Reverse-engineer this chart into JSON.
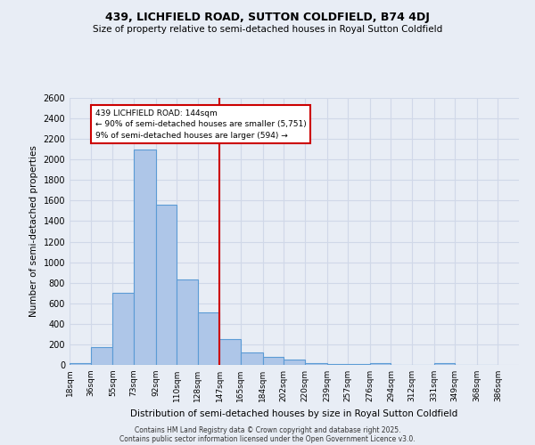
{
  "title1": "439, LICHFIELD ROAD, SUTTON COLDFIELD, B74 4DJ",
  "title2": "Size of property relative to semi-detached houses in Royal Sutton Coldfield",
  "xlabel": "Distribution of semi-detached houses by size in Royal Sutton Coldfield",
  "ylabel": "Number of semi-detached properties",
  "bin_labels": [
    "18sqm",
    "36sqm",
    "55sqm",
    "73sqm",
    "92sqm",
    "110sqm",
    "128sqm",
    "147sqm",
    "165sqm",
    "184sqm",
    "202sqm",
    "220sqm",
    "239sqm",
    "257sqm",
    "276sqm",
    "294sqm",
    "312sqm",
    "331sqm",
    "349sqm",
    "368sqm",
    "386sqm"
  ],
  "bin_edges": [
    18,
    36,
    55,
    73,
    92,
    110,
    128,
    147,
    165,
    184,
    202,
    220,
    239,
    257,
    276,
    294,
    312,
    331,
    349,
    368,
    386
  ],
  "bar_heights": [
    18,
    170,
    700,
    2100,
    1560,
    830,
    510,
    250,
    120,
    75,
    50,
    20,
    10,
    5,
    20,
    0,
    0,
    20,
    0,
    0
  ],
  "bar_color": "#aec6e8",
  "bar_edge_color": "#5b9bd5",
  "grid_color": "#d0d8e8",
  "bg_color": "#e8edf5",
  "vline_x": 147,
  "vline_color": "#cc0000",
  "ylim": [
    0,
    2600
  ],
  "yticks": [
    0,
    200,
    400,
    600,
    800,
    1000,
    1200,
    1400,
    1600,
    1800,
    2000,
    2200,
    2400,
    2600
  ],
  "annotation_title": "439 LICHFIELD ROAD: 144sqm",
  "annotation_line1": "← 90% of semi-detached houses are smaller (5,751)",
  "annotation_line2": "9% of semi-detached houses are larger (594) →",
  "annotation_box_color": "#ffffff",
  "annotation_box_edge": "#cc0000",
  "footer_line1": "Contains HM Land Registry data © Crown copyright and database right 2025.",
  "footer_line2": "Contains public sector information licensed under the Open Government Licence v3.0."
}
